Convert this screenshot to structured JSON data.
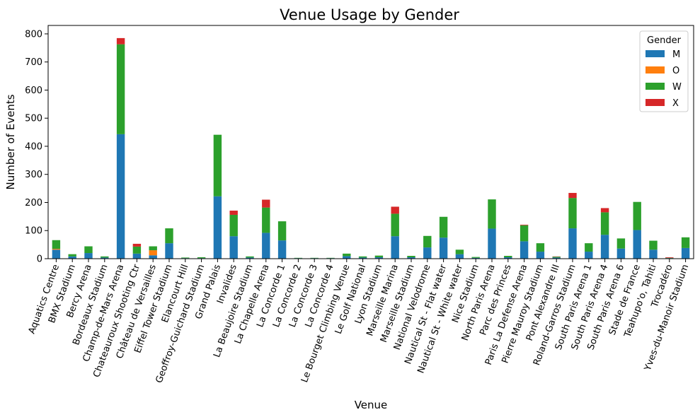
{
  "chart_data": {
    "type": "bar",
    "stacked": true,
    "title": "Venue Usage by Gender",
    "xlabel": "Venue",
    "ylabel": "Number of Events",
    "ylim": [
      0,
      830
    ],
    "yticks": [
      0,
      100,
      200,
      300,
      400,
      500,
      600,
      700,
      800
    ],
    "grid": false,
    "legend": {
      "title": "Gender",
      "placement": "top-right"
    },
    "categories": [
      "Aquatics Centre",
      "BMX Stadium",
      "Bercy Arena",
      "Bordeaux Stadium",
      "Champ-de-Mars Arena",
      "Chateauroux Shooting Ctr",
      "Château de Versailles",
      "Eiffel Tower Stadium",
      "Elancourt Hill",
      "Geoffroy-Guichard Stadium",
      "Grand Palais",
      "Invalides",
      "La Beaujoire Stadium",
      "La Chapelle Arena",
      "La Concorde 1",
      "La Concorde 2",
      "La Concorde 3",
      "La Concorde 4",
      "Le Bourget Climbing Venue",
      "Le Golf National",
      "Lyon Stadium",
      "Marseille Marina",
      "Marseille Stadium",
      "National Velodrome",
      "Nautical St - Flat water",
      "Nautical St - White water",
      "Nice Stadium",
      "North Paris Arena",
      "Parc des Princes",
      "Paris La Defense Arena",
      "Pierre Mauroy Stadium",
      "Pont Alexandre III",
      "Roland-Garros Stadium",
      "South Paris Arena 1",
      "South Paris Arena 4",
      "South Paris Arena 6",
      "Stade de France",
      "Teahupo'o, Tahiti",
      "Trocadéro",
      "Yves-du-Manoir Stadium"
    ],
    "series": [
      {
        "name": "M",
        "color": "#1f77b4",
        "values": [
          32,
          8,
          20,
          4,
          443,
          18,
          12,
          55,
          2,
          2,
          222,
          80,
          4,
          92,
          65,
          2,
          2,
          2,
          9,
          4,
          5,
          80,
          5,
          40,
          75,
          16,
          3,
          107,
          5,
          62,
          25,
          4,
          108,
          25,
          85,
          36,
          102,
          32,
          2,
          38
        ]
      },
      {
        "name": "O",
        "color": "#ff7f0e",
        "values": [
          3,
          0,
          0,
          0,
          0,
          0,
          18,
          0,
          0,
          0,
          0,
          0,
          0,
          0,
          0,
          0,
          0,
          0,
          0,
          0,
          0,
          0,
          0,
          0,
          0,
          0,
          0,
          0,
          0,
          0,
          0,
          0,
          0,
          0,
          0,
          0,
          0,
          0,
          0,
          0
        ]
      },
      {
        "name": "W",
        "color": "#2ca02c",
        "values": [
          31,
          8,
          24,
          4,
          320,
          25,
          14,
          53,
          2,
          3,
          219,
          76,
          4,
          90,
          68,
          1,
          1,
          1,
          9,
          4,
          6,
          80,
          5,
          41,
          74,
          16,
          3,
          104,
          5,
          57,
          30,
          3,
          108,
          30,
          80,
          36,
          100,
          32,
          1,
          38
        ]
      },
      {
        "name": "X",
        "color": "#d62728",
        "values": [
          0,
          0,
          0,
          0,
          22,
          10,
          0,
          0,
          0,
          0,
          0,
          15,
          0,
          28,
          0,
          0,
          0,
          0,
          0,
          0,
          0,
          25,
          0,
          0,
          0,
          0,
          0,
          0,
          0,
          2,
          0,
          1,
          18,
          0,
          15,
          0,
          0,
          0,
          2,
          0
        ]
      }
    ]
  }
}
